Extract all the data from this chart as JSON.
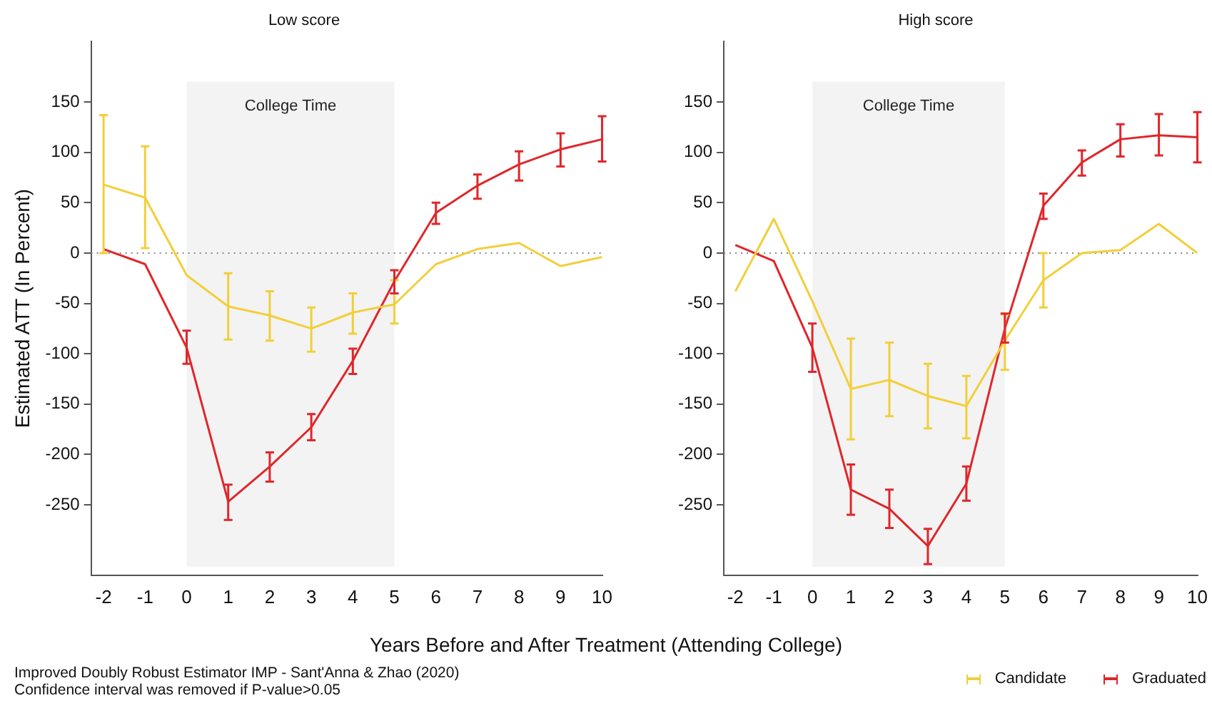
{
  "chart_data": [
    {
      "type": "line",
      "title": "Low score",
      "xlabel": "Years Before and After Treatment (Attending College)",
      "ylabel": "Estimated ATT (In Percent)",
      "annotations": [
        "Improved Doubly Robust Estimator IMP - Sant'Anna & Zhao (2020)",
        "Confidence interval was removed if P-value>0.05"
      ],
      "x": [
        -2,
        -1,
        0,
        1,
        2,
        3,
        4,
        5,
        6,
        7,
        8,
        9,
        10
      ],
      "xlim": [
        -2.3,
        10
      ],
      "xticks": [
        -2,
        -1,
        0,
        1,
        2,
        3,
        4,
        5,
        6,
        7,
        8,
        9,
        10
      ],
      "ylim": [
        -320,
        210
      ],
      "yticks": [
        -250,
        -200,
        -150,
        -100,
        -50,
        0,
        50,
        100,
        150
      ],
      "series": [
        {
          "color": "#f2cf3a",
          "values": [
            68,
            55,
            -22,
            -53,
            -62,
            -75,
            -59,
            -51,
            -11,
            4,
            10,
            -13,
            -4
          ],
          "errors": [
            [
              0,
              137
            ],
            [
              5,
              106
            ],
            null,
            [
              -86,
              -20
            ],
            [
              -87,
              -38
            ],
            [
              -98,
              -54
            ],
            [
              -80,
              -40
            ],
            [
              -70,
              -27
            ],
            null,
            null,
            null,
            null,
            null
          ]
        },
        {
          "color": "#e0262a",
          "values": [
            4,
            -11,
            -94,
            -247,
            -212,
            -173,
            -107,
            -28,
            40,
            67,
            88,
            103,
            113
          ],
          "errors": [
            null,
            null,
            [
              -110,
              -77
            ],
            [
              -265,
              -230
            ],
            [
              -227,
              -198
            ],
            [
              -186,
              -160
            ],
            [
              -120,
              -95
            ],
            [
              -40,
              -17
            ],
            [
              29,
              50
            ],
            [
              54,
              78
            ],
            [
              72,
              101
            ],
            [
              86,
              119
            ],
            [
              91,
              136
            ]
          ]
        }
      ],
      "bands": [
        {
          "axis": "x",
          "from": 0,
          "to": 5,
          "label": "College Time",
          "color": "#f3f3f3"
        }
      ],
      "ref_lines": [
        {
          "axis": "y",
          "value": 0,
          "line_style": "dotted",
          "color": "#888888"
        }
      ]
    },
    {
      "type": "line",
      "title": "High score",
      "legend": "bottom right",
      "x": [
        -2,
        -1,
        0,
        1,
        2,
        3,
        4,
        5,
        6,
        7,
        8,
        9,
        10
      ],
      "xlim": [
        -2.3,
        10
      ],
      "xticks": [
        -2,
        -1,
        0,
        1,
        2,
        3,
        4,
        5,
        6,
        7,
        8,
        9,
        10
      ],
      "ylim": [
        -320,
        210
      ],
      "yticks": [
        -250,
        -200,
        -150,
        -100,
        -50,
        0,
        50,
        100,
        150
      ],
      "series": [
        {
          "name": "Candidate",
          "color": "#f2cf3a",
          "values": [
            -38,
            34,
            -48,
            -135,
            -126,
            -142,
            -152,
            -87,
            -27,
            0,
            3,
            29,
            0
          ],
          "errors": [
            null,
            null,
            null,
            [
              -185,
              -85
            ],
            [
              -162,
              -89
            ],
            [
              -174,
              -110
            ],
            [
              -184,
              -122
            ],
            [
              -116,
              -61
            ],
            [
              -54,
              0
            ],
            null,
            null,
            null,
            null
          ]
        },
        {
          "name": "Graduated",
          "color": "#e0262a",
          "values": [
            8,
            -8,
            -94,
            -235,
            -254,
            -291,
            -229,
            -75,
            47,
            90,
            113,
            117,
            115
          ],
          "errors": [
            null,
            null,
            [
              -118,
              -70
            ],
            [
              -260,
              -210
            ],
            [
              -273,
              -235
            ],
            [
              -309,
              -274
            ],
            [
              -246,
              -212
            ],
            [
              -89,
              -60
            ],
            [
              34,
              59
            ],
            [
              77,
              102
            ],
            [
              96,
              128
            ],
            [
              97,
              138
            ],
            [
              90,
              140
            ]
          ]
        }
      ],
      "bands": [
        {
          "axis": "x",
          "from": 0,
          "to": 5,
          "label": "College Time",
          "color": "#f3f3f3"
        }
      ],
      "ref_lines": [
        {
          "axis": "y",
          "value": 0,
          "line_style": "dotted",
          "color": "#888888"
        }
      ]
    }
  ]
}
